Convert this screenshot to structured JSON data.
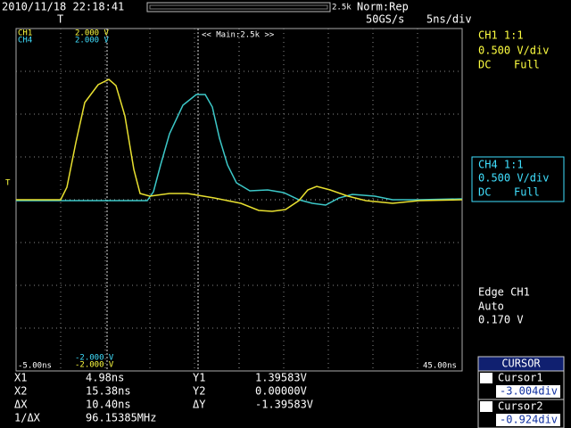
{
  "header": {
    "timestamp": "2010/11/18 22:18:41",
    "zoom": "2.5k",
    "mode": "Norm:Rep",
    "sample_rate": "50GS/s",
    "timebase": "5ns/div"
  },
  "screen": {
    "trigger_marker": "T",
    "ch1_label": "CH1",
    "ch1_scale": "2.000 V",
    "ch4_label": "CH4",
    "ch4_scale": "2.000 V",
    "zoom_label": "<< Main:2.5k >>",
    "ch1_offset": "-2.000 V",
    "ch4_offset": "-2.000 V",
    "x_start": "-5.00ns",
    "x_end": "45.00ns"
  },
  "ch1_panel": {
    "title": "CH1 1:1",
    "scale": "0.500 V/div",
    "coupling": "DC",
    "bandwidth": "Full"
  },
  "ch4_panel": {
    "title": "CH4 1:1",
    "scale": "0.500 V/div",
    "coupling": "DC",
    "bandwidth": "Full"
  },
  "trigger_panel": {
    "source": "Edge CH1",
    "mode": "Auto",
    "level": "0.170 V"
  },
  "measurements": {
    "rows": [
      [
        "X1",
        "4.98ns",
        "Y1",
        "1.39583V"
      ],
      [
        "X2",
        "15.38ns",
        "Y2",
        "0.00000V"
      ],
      [
        "ΔX",
        "10.40ns",
        "ΔY",
        "-1.39583V"
      ],
      [
        "1/ΔX",
        "96.15385MHz"
      ]
    ]
  },
  "cursor_panel": {
    "title": "CURSOR",
    "cursor1": "Cursor1",
    "cursor1_value": "-3.004div",
    "cursor2": "Cursor2",
    "cursor2_value": "-0.924div"
  }
}
